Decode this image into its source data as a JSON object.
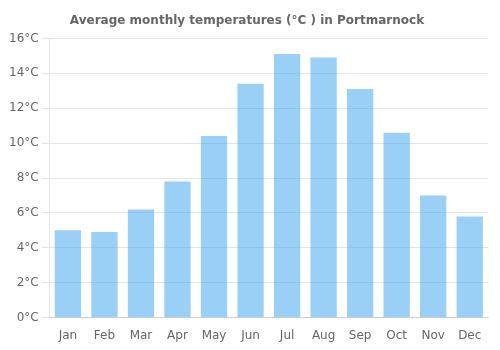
{
  "chart_data": {
    "type": "bar",
    "title": "Average monthly temperatures (°C ) in Portmarnock",
    "categories": [
      "Jan",
      "Feb",
      "Mar",
      "Apr",
      "May",
      "Jun",
      "Jul",
      "Aug",
      "Sep",
      "Oct",
      "Nov",
      "Dec"
    ],
    "values": [
      5.0,
      4.9,
      6.2,
      7.8,
      10.4,
      13.4,
      15.1,
      14.9,
      13.1,
      10.6,
      7.0,
      5.8
    ],
    "ylim": [
      0,
      16
    ],
    "yticks": [
      {
        "value": 0,
        "label": "0°C"
      },
      {
        "value": 2,
        "label": "2°C"
      },
      {
        "value": 4,
        "label": "4°C"
      },
      {
        "value": 6,
        "label": "6°C"
      },
      {
        "value": 8,
        "label": "8°C"
      },
      {
        "value": 10,
        "label": "10°C"
      },
      {
        "value": 12,
        "label": "12°C"
      },
      {
        "value": 14,
        "label": "14°C"
      },
      {
        "value": 16,
        "label": "16°C"
      }
    ],
    "grid": true
  }
}
